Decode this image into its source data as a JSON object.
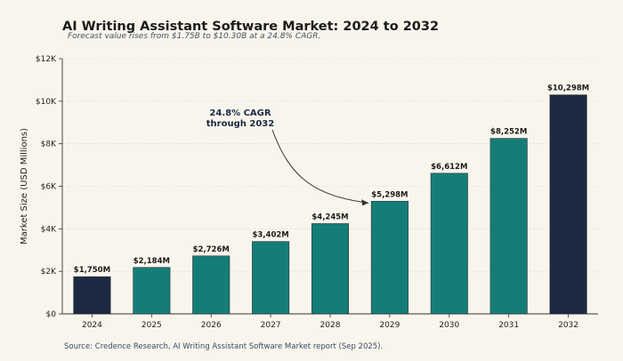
{
  "chart_data": {
    "type": "bar",
    "title": "AI Writing Assistant Software Market: 2024 to 2032",
    "subtitle": "Forecast value rises from $1.75B to $10.30B at a 24.8% CAGR.",
    "xlabel": "",
    "ylabel": "Market Size (USD Millions)",
    "categories": [
      "2024",
      "2025",
      "2026",
      "2027",
      "2028",
      "2029",
      "2030",
      "2031",
      "2032"
    ],
    "values": [
      1750,
      2184,
      2726,
      3402,
      4245,
      5298,
      6612,
      8252,
      10298
    ],
    "data_labels": [
      "$1,750M",
      "$2,184M",
      "$2,726M",
      "$3,402M",
      "$4,245M",
      "$5,298M",
      "$6,612M",
      "$8,252M",
      "$10,298M"
    ],
    "ylim": [
      0,
      12000
    ],
    "yticks": [
      0,
      2000,
      4000,
      6000,
      8000,
      10000,
      12000
    ],
    "ytick_labels": [
      "$0",
      "$2K",
      "$4K",
      "$6K",
      "$8K",
      "$10K",
      "$12K"
    ],
    "grid": true,
    "annotation": {
      "lines": [
        "24.8% CAGR",
        "through 2032"
      ],
      "target_category": "2029"
    },
    "colors": {
      "highlight": "#1c2943",
      "main": "#157d78",
      "background": "#f8f5ec",
      "text": "#1b1b1b"
    },
    "highlight_categories": [
      "2024",
      "2032"
    ]
  },
  "source": "Source: Credence Research, AI Writing Assistant Software Market report (Sep 2025)."
}
